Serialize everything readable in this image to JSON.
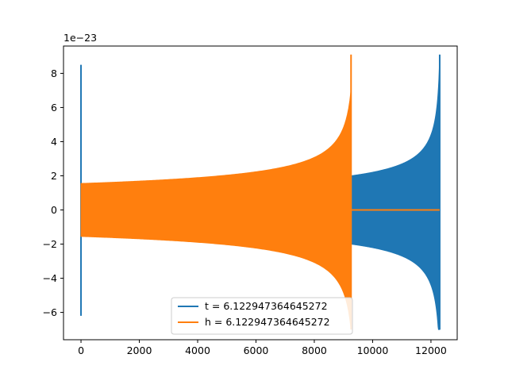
{
  "chart_data": {
    "type": "line",
    "title": "",
    "xlabel": "",
    "ylabel": "",
    "y_offset_label": "1e−23",
    "xlim": [
      -600,
      12900
    ],
    "ylim": [
      -7.6,
      9.6
    ],
    "xticks": [
      0,
      2000,
      4000,
      6000,
      8000,
      10000,
      12000
    ],
    "yticks": [
      -6,
      -4,
      -2,
      0,
      2,
      4,
      6,
      8
    ],
    "grid": false,
    "legend_position": "bottom-center",
    "series": [
      {
        "name": "t = 6.122947364645272",
        "color": "#1f77b4",
        "spike_x": 0,
        "spike_range": [
          -6.2,
          8.5
        ],
        "tail_start_x": 9260,
        "tail_end_x": 12300,
        "tail_start_amplitude": 2.0,
        "tail_peak_range": [
          -7.0,
          9.1
        ]
      },
      {
        "name": "h = 6.122947364645272",
        "color": "#ff7f0e",
        "start_x": 0,
        "end_x": 9260,
        "start_amplitude": 1.55,
        "peak_range": [
          -7.0,
          9.1
        ],
        "after_value": 0,
        "after_end_x": 12300
      }
    ]
  }
}
